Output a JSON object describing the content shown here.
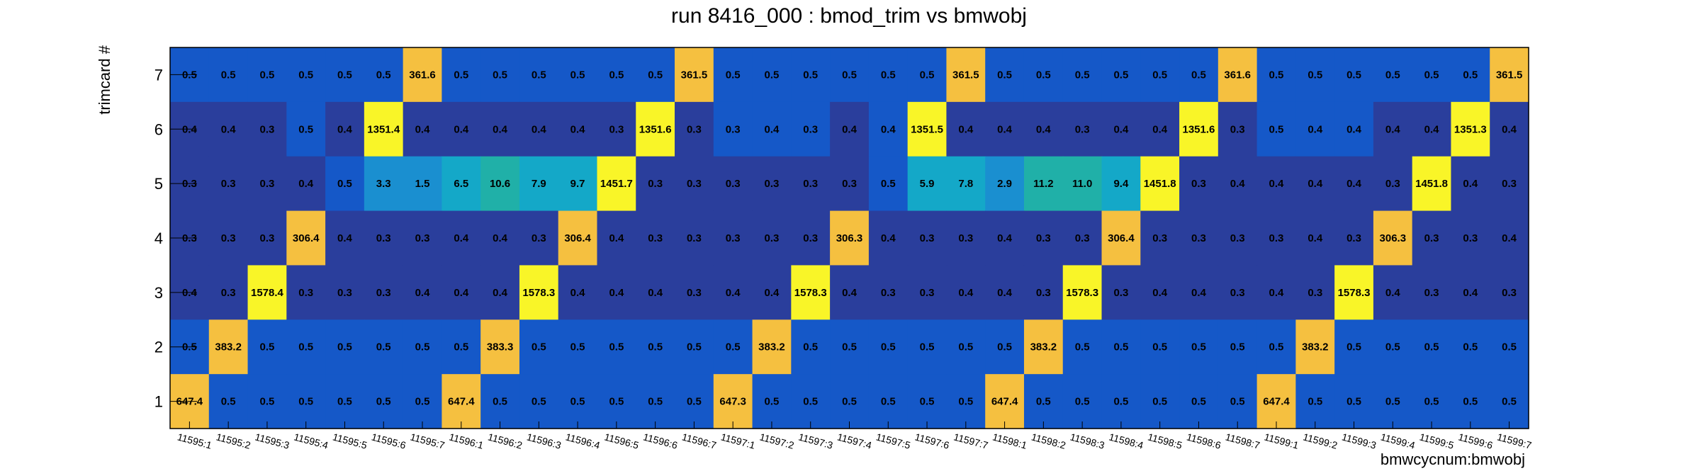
{
  "chart_data": {
    "type": "heatmap",
    "title": "run 8416_000 : bmod_trim vs bmwobj",
    "xlabel": "bmwcycnum:bmwobj",
    "ylabel": "trimcard #",
    "x_categories": [
      "11595:1",
      "11595:2",
      "11595:3",
      "11595:4",
      "11595:5",
      "11595:6",
      "11595:7",
      "11596:1",
      "11596:2",
      "11596:3",
      "11596:4",
      "11596:5",
      "11596:6",
      "11596:7",
      "11597:1",
      "11597:2",
      "11597:3",
      "11597:4",
      "11597:5",
      "11597:6",
      "11597:7",
      "11598:1",
      "11598:2",
      "11598:3",
      "11598:4",
      "11598:5",
      "11598:6",
      "11598:7",
      "11599:1",
      "11599:2",
      "11599:3",
      "11599:4",
      "11599:5",
      "11599:6",
      "11599:7"
    ],
    "y_categories": [
      "1",
      "2",
      "3",
      "4",
      "5",
      "6",
      "7"
    ],
    "rows": [
      {
        "y": "7",
        "labels": [
          "0.5",
          "0.5",
          "0.5",
          "0.5",
          "0.5",
          "0.5",
          "361.6",
          "0.5",
          "0.5",
          "0.5",
          "0.5",
          "0.5",
          "0.5",
          "361.5",
          "0.5",
          "0.5",
          "0.5",
          "0.5",
          "0.5",
          "0.5",
          "361.5",
          "0.5",
          "0.5",
          "0.5",
          "0.5",
          "0.5",
          "0.5",
          "361.6",
          "0.5",
          "0.5",
          "0.5",
          "0.5",
          "0.5",
          "0.5",
          "361.5"
        ]
      },
      {
        "y": "6",
        "labels": [
          "0.4",
          "0.4",
          "0.3",
          "0.5",
          "0.4",
          "1351.4",
          "0.4",
          "0.4",
          "0.4",
          "0.4",
          "0.4",
          "0.3",
          "1351.6",
          "0.3",
          "0.3",
          "0.4",
          "0.3",
          "0.4",
          "0.4",
          "1351.5",
          "0.4",
          "0.4",
          "0.4",
          "0.3",
          "0.4",
          "0.4",
          "1351.6",
          "0.3",
          "0.5",
          "0.4",
          "0.4",
          "0.4",
          "0.4",
          "1351.3",
          "0.4"
        ]
      },
      {
        "y": "5",
        "labels": [
          "0.3",
          "0.3",
          "0.3",
          "0.4",
          "0.5",
          "3.3",
          "1.5",
          "6.5",
          "10.6",
          "7.9",
          "9.7",
          "1451.7",
          "0.3",
          "0.3",
          "0.3",
          "0.3",
          "0.3",
          "0.3",
          "0.5",
          "5.9",
          "7.8",
          "2.9",
          "11.2",
          "11.0",
          "9.4",
          "1451.8",
          "0.3",
          "0.4",
          "0.4",
          "0.4",
          "0.4",
          "0.3",
          "1451.8",
          "0.4",
          "0.3"
        ]
      },
      {
        "y": "4",
        "labels": [
          "0.3",
          "0.3",
          "0.3",
          "306.4",
          "0.4",
          "0.3",
          "0.3",
          "0.4",
          "0.4",
          "0.3",
          "306.4",
          "0.4",
          "0.3",
          "0.3",
          "0.3",
          "0.3",
          "0.3",
          "306.3",
          "0.4",
          "0.3",
          "0.3",
          "0.4",
          "0.3",
          "0.3",
          "306.4",
          "0.3",
          "0.3",
          "0.3",
          "0.3",
          "0.4",
          "0.3",
          "306.3",
          "0.3",
          "0.3",
          "0.4"
        ]
      },
      {
        "y": "3",
        "labels": [
          "0.4",
          "0.3",
          "1578.4",
          "0.3",
          "0.3",
          "0.3",
          "0.4",
          "0.4",
          "0.4",
          "1578.3",
          "0.4",
          "0.4",
          "0.4",
          "0.3",
          "0.4",
          "0.4",
          "1578.3",
          "0.4",
          "0.3",
          "0.3",
          "0.4",
          "0.4",
          "0.3",
          "1578.3",
          "0.3",
          "0.4",
          "0.4",
          "0.3",
          "0.4",
          "0.3",
          "1578.3",
          "0.4",
          "0.3",
          "0.4",
          "0.3"
        ]
      },
      {
        "y": "2",
        "labels": [
          "0.5",
          "383.2",
          "0.5",
          "0.5",
          "0.5",
          "0.5",
          "0.5",
          "0.5",
          "383.3",
          "0.5",
          "0.5",
          "0.5",
          "0.5",
          "0.5",
          "0.5",
          "383.2",
          "0.5",
          "0.5",
          "0.5",
          "0.5",
          "0.5",
          "0.5",
          "383.2",
          "0.5",
          "0.5",
          "0.5",
          "0.5",
          "0.5",
          "0.5",
          "383.2",
          "0.5",
          "0.5",
          "0.5",
          "0.5",
          "0.5"
        ]
      },
      {
        "y": "1",
        "labels": [
          "647.4",
          "0.5",
          "0.5",
          "0.5",
          "0.5",
          "0.5",
          "0.5",
          "647.4",
          "0.5",
          "0.5",
          "0.5",
          "0.5",
          "0.5",
          "0.5",
          "647.3",
          "0.5",
          "0.5",
          "0.5",
          "0.5",
          "0.5",
          "0.5",
          "647.4",
          "0.5",
          "0.5",
          "0.5",
          "0.5",
          "0.5",
          "0.5",
          "647.4",
          "0.5",
          "0.5",
          "0.5",
          "0.5",
          "0.5",
          "0.5"
        ]
      }
    ],
    "colors": {
      "background_low": "#2a3e9c",
      "background_mid": "#1558c8",
      "cyan_low": "#1a8fd0",
      "cyan": "#14a8c8",
      "teal": "#20b0a8",
      "orange": "#f5c040",
      "yellow": "#f9f528"
    },
    "legend": "none",
    "grid": false
  }
}
